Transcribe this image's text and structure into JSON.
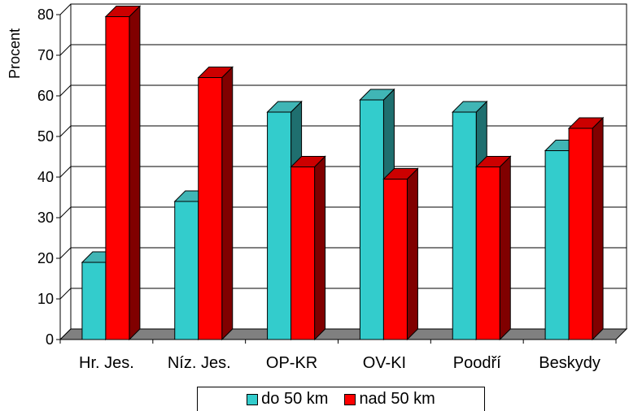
{
  "chart_data": {
    "type": "bar",
    "categories": [
      "Hr. Jes.",
      "Níz. Jes.",
      "OP-KR",
      "OV-KI",
      "Poodří",
      "Beskydy"
    ],
    "series": [
      {
        "name": "do 50 km",
        "values": [
          19,
          34,
          56,
          59,
          56,
          46.5
        ],
        "color": "#33cccc",
        "side_color": "#1f6f6f",
        "top_color": "#40b5b5"
      },
      {
        "name": "nad 50 km",
        "values": [
          79.5,
          64.5,
          42.5,
          39.5,
          42.5,
          52
        ],
        "color": "#ff0000",
        "side_color": "#800000",
        "top_color": "#cc0000"
      }
    ],
    "title": "",
    "xlabel": "",
    "ylabel": "Procent",
    "ylim": [
      0,
      80
    ],
    "yticks": [
      0,
      10,
      20,
      30,
      40,
      50,
      60,
      70,
      80
    ],
    "grid": true,
    "legend_position": "bottom"
  }
}
